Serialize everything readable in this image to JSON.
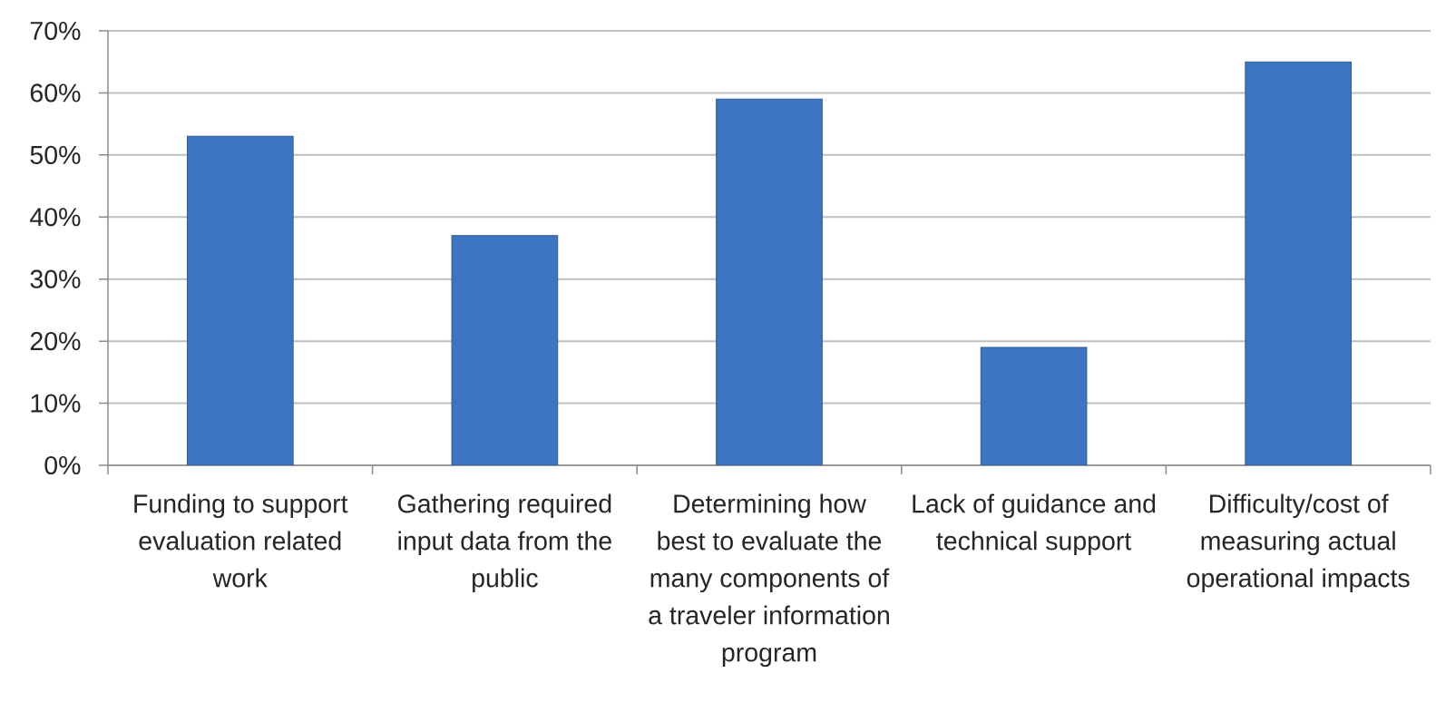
{
  "chart_data": {
    "type": "bar",
    "categories": [
      "Funding to support evaluation related work",
      "Gathering required input data from the public",
      "Determining how best to evaluate the many components of a traveler information program",
      "Lack of guidance and technical support",
      "Difficulty/cost of measuring actual operational impacts"
    ],
    "values": [
      53,
      37,
      59,
      19,
      65
    ],
    "color": "#3c75c0",
    "ylim": [
      0,
      70
    ],
    "yticks": [
      {
        "value": 0,
        "label": "0%"
      },
      {
        "value": 10,
        "label": "10%"
      },
      {
        "value": 20,
        "label": "20%"
      },
      {
        "value": 30,
        "label": "30%"
      },
      {
        "value": 40,
        "label": "40%"
      },
      {
        "value": 50,
        "label": "50%"
      },
      {
        "value": 60,
        "label": "60%"
      },
      {
        "value": 70,
        "label": "70%"
      }
    ],
    "grid": "y"
  }
}
